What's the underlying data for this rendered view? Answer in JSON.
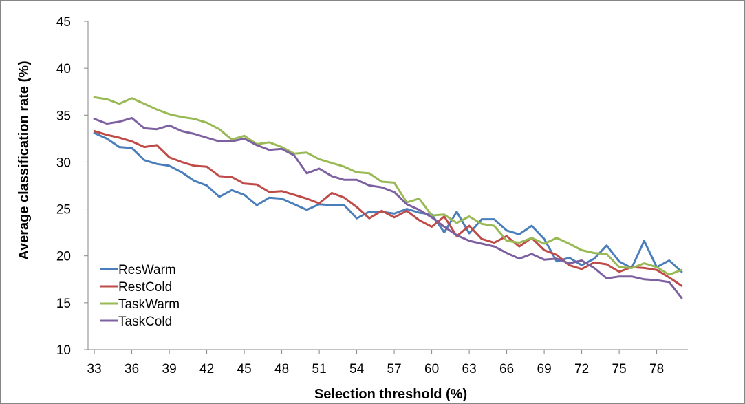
{
  "chart_data": {
    "type": "line",
    "xlabel": "Selection threshold (%)",
    "ylabel": "Average classification rate (%)",
    "ylim": [
      10,
      45
    ],
    "yticks": [
      10,
      15,
      20,
      25,
      30,
      35,
      40,
      45
    ],
    "xtick_labels": [
      "33",
      "36",
      "39",
      "42",
      "45",
      "48",
      "51",
      "54",
      "57",
      "60",
      "63",
      "66",
      "69",
      "72",
      "75",
      "78"
    ],
    "x": [
      33,
      34,
      35,
      36,
      37,
      38,
      39,
      40,
      41,
      42,
      43,
      44,
      45,
      46,
      47,
      48,
      49,
      50,
      51,
      52,
      53,
      54,
      55,
      56,
      57,
      58,
      59,
      60,
      61,
      62,
      63,
      64,
      65,
      66,
      67,
      68,
      69,
      70,
      71,
      72,
      73,
      74,
      75,
      76,
      77,
      78,
      79,
      80
    ],
    "legend": "bottom-left",
    "grid": false,
    "series": [
      {
        "name": "ResWarm",
        "color": "#4a7ebb",
        "values": [
          33.1,
          32.5,
          31.6,
          31.5,
          30.2,
          29.8,
          29.6,
          28.9,
          28.0,
          27.5,
          26.3,
          27.0,
          26.5,
          25.4,
          26.2,
          26.1,
          25.5,
          24.9,
          25.5,
          25.4,
          25.4,
          24.0,
          24.7,
          24.7,
          24.5,
          25.0,
          24.6,
          24.4,
          22.5,
          24.7,
          22.4,
          23.9,
          23.9,
          22.7,
          22.3,
          23.2,
          21.8,
          19.4,
          19.8,
          19.0,
          19.7,
          21.1,
          19.4,
          18.7,
          21.6,
          18.8,
          19.5,
          18.3
        ]
      },
      {
        "name": "RestCold",
        "color": "#be4b48",
        "values": [
          33.3,
          32.9,
          32.6,
          32.2,
          31.6,
          31.8,
          30.5,
          30.0,
          29.6,
          29.5,
          28.5,
          28.4,
          27.7,
          27.6,
          26.8,
          26.9,
          26.5,
          26.1,
          25.6,
          26.7,
          26.2,
          25.2,
          24.0,
          24.8,
          24.1,
          24.8,
          23.8,
          23.1,
          24.2,
          22.1,
          23.2,
          21.8,
          21.4,
          22.1,
          21.0,
          21.9,
          20.6,
          20.1,
          19.0,
          18.6,
          19.3,
          19.1,
          18.3,
          18.8,
          18.7,
          18.5,
          17.7,
          16.8
        ]
      },
      {
        "name": "TaskWarm",
        "color": "#98b954",
        "values": [
          36.9,
          36.7,
          36.2,
          36.8,
          36.2,
          35.6,
          35.1,
          34.8,
          34.6,
          34.2,
          33.5,
          32.4,
          32.8,
          31.9,
          32.1,
          31.6,
          30.9,
          31.0,
          30.3,
          29.9,
          29.5,
          28.9,
          28.8,
          27.9,
          27.8,
          25.7,
          26.1,
          24.3,
          24.4,
          23.5,
          24.2,
          23.4,
          23.2,
          21.6,
          21.4,
          21.9,
          21.3,
          21.9,
          21.3,
          20.6,
          20.3,
          20.2,
          18.8,
          18.7,
          19.2,
          18.8,
          18.0,
          18.5
        ]
      },
      {
        "name": "TaskCold",
        "color": "#7d60a0",
        "values": [
          34.6,
          34.1,
          34.3,
          34.7,
          33.6,
          33.5,
          33.9,
          33.3,
          33.0,
          32.6,
          32.2,
          32.2,
          32.5,
          31.8,
          31.3,
          31.4,
          30.7,
          28.8,
          29.3,
          28.5,
          28.1,
          28.1,
          27.5,
          27.3,
          26.8,
          25.5,
          24.9,
          24.1,
          23.1,
          22.2,
          21.6,
          21.3,
          21.0,
          20.3,
          19.7,
          20.2,
          19.6,
          19.7,
          19.2,
          19.5,
          18.7,
          17.6,
          17.8,
          17.8,
          17.5,
          17.4,
          17.2,
          15.5
        ]
      }
    ]
  }
}
